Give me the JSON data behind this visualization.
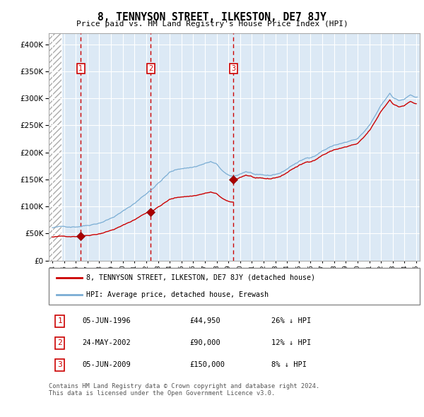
{
  "title": "8, TENNYSON STREET, ILKESTON, DE7 8JY",
  "subtitle": "Price paid vs. HM Land Registry's House Price Index (HPI)",
  "sale_years": [
    1996.42,
    2002.38,
    2009.42
  ],
  "sale_prices": [
    44950,
    90000,
    150000
  ],
  "sale_labels": [
    "1",
    "2",
    "3"
  ],
  "vline_color": "#cc0000",
  "hpi_color": "#7aadd4",
  "sale_color": "#cc0000",
  "marker_color": "#aa0000",
  "bg_color": "#dce9f5",
  "grid_color": "#ffffff",
  "label_box_color": "#cc0000",
  "table_data": [
    [
      "1",
      "05-JUN-1996",
      "£44,950",
      "26% ↓ HPI"
    ],
    [
      "2",
      "24-MAY-2002",
      "£90,000",
      "12% ↓ HPI"
    ],
    [
      "3",
      "05-JUN-2009",
      "£150,000",
      "8% ↓ HPI"
    ]
  ],
  "footnote": "Contains HM Land Registry data © Crown copyright and database right 2024.\nThis data is licensed under the Open Government Licence v3.0.",
  "xmin": 1993.7,
  "xmax": 2025.3,
  "ymin": 0,
  "ymax": 420000,
  "hatch_end": 1994.8
}
